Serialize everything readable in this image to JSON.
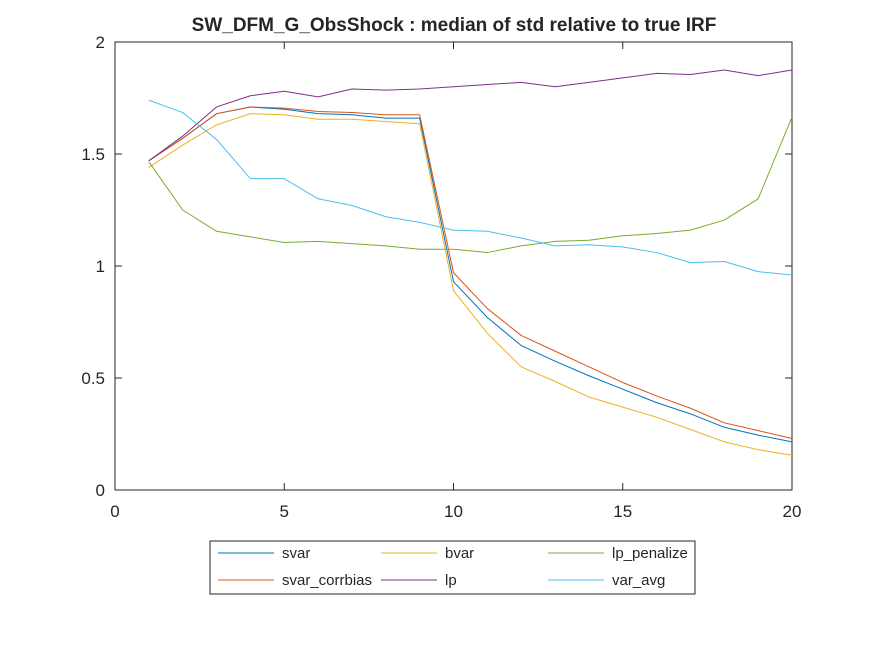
{
  "chart_data": {
    "type": "line",
    "title": "SW_DFM_G_ObsShock : median of std relative to true IRF",
    "xlabel": "",
    "ylabel": "",
    "xlim": [
      0,
      20
    ],
    "ylim": [
      0,
      2
    ],
    "xticks": [
      0,
      5,
      10,
      15,
      20
    ],
    "yticks": [
      0,
      0.5,
      1,
      1.5,
      2
    ],
    "ytick_labels": [
      "0",
      "0.5",
      "1",
      "1.5",
      "2"
    ],
    "grid": false,
    "legend": {
      "placement": "bottom-outside",
      "columns": 3
    },
    "x": [
      1,
      2,
      3,
      4,
      5,
      6,
      7,
      8,
      9,
      10,
      11,
      12,
      13,
      14,
      15,
      16,
      17,
      18,
      19,
      20
    ],
    "series": [
      {
        "name": "svar",
        "color": "#0072BD",
        "values": [
          1.47,
          1.57,
          1.68,
          1.71,
          1.7,
          1.68,
          1.675,
          1.66,
          1.66,
          0.93,
          0.77,
          0.645,
          0.575,
          0.51,
          0.45,
          0.39,
          0.34,
          0.28,
          0.245,
          0.215
        ]
      },
      {
        "name": "svar_corrbias",
        "color": "#D95319",
        "values": [
          1.47,
          1.57,
          1.68,
          1.71,
          1.705,
          1.69,
          1.685,
          1.675,
          1.675,
          0.97,
          0.81,
          0.69,
          0.62,
          0.55,
          0.48,
          0.42,
          0.365,
          0.3,
          0.265,
          0.23
        ]
      },
      {
        "name": "bvar",
        "color": "#EDB120",
        "values": [
          1.44,
          1.54,
          1.63,
          1.68,
          1.675,
          1.655,
          1.655,
          1.645,
          1.635,
          0.89,
          0.7,
          0.55,
          0.485,
          0.415,
          0.37,
          0.325,
          0.27,
          0.215,
          0.18,
          0.155
        ]
      },
      {
        "name": "lp",
        "color": "#7E2F8E",
        "values": [
          1.47,
          1.58,
          1.71,
          1.76,
          1.78,
          1.755,
          1.79,
          1.785,
          1.79,
          1.8,
          1.81,
          1.82,
          1.8,
          1.82,
          1.84,
          1.86,
          1.855,
          1.875,
          1.85,
          1.875
        ]
      },
      {
        "name": "lp_penalize",
        "color": "#77AC30",
        "values": [
          1.465,
          1.25,
          1.155,
          1.13,
          1.105,
          1.11,
          1.1,
          1.09,
          1.075,
          1.075,
          1.06,
          1.09,
          1.11,
          1.115,
          1.135,
          1.145,
          1.16,
          1.205,
          1.3,
          1.665
        ]
      },
      {
        "name": "var_avg",
        "color": "#4DBEEE",
        "values": [
          1.74,
          1.685,
          1.565,
          1.39,
          1.39,
          1.3,
          1.27,
          1.22,
          1.195,
          1.16,
          1.155,
          1.125,
          1.09,
          1.095,
          1.085,
          1.06,
          1.015,
          1.02,
          0.975,
          0.96
        ]
      }
    ],
    "legend_order": [
      "svar",
      "bvar",
      "lp_penalize",
      "svar_corrbias",
      "lp",
      "var_avg"
    ]
  }
}
